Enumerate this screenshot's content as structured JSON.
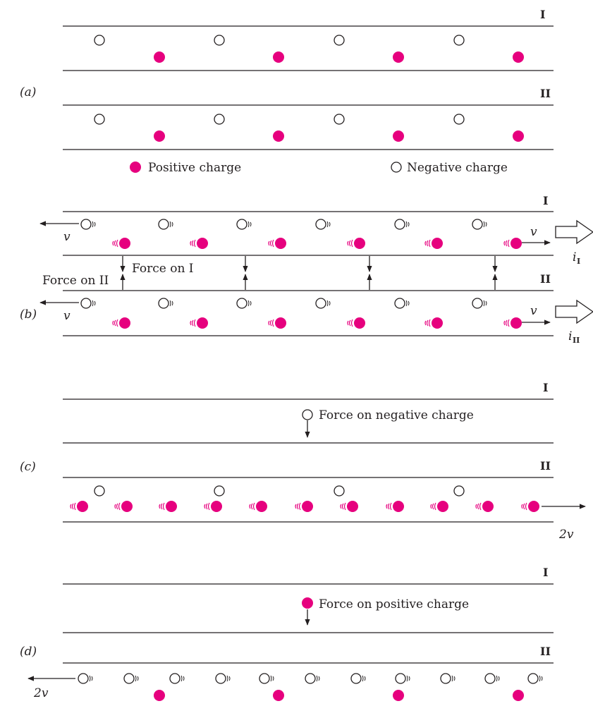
{
  "colors": {
    "positive": "#e6007e",
    "negative_fill": "#ffffff",
    "ink": "#231f20"
  },
  "panels": {
    "a": {
      "label": "(a)",
      "wire1": "I",
      "wire2": "II"
    },
    "b": {
      "label": "(b)",
      "wire1": "I",
      "wire2": "II",
      "velocity": "v",
      "force_on_1": "Force on I",
      "force_on_2": "Force on II",
      "current_1": "i",
      "current_1_sub": "I",
      "current_2": "i",
      "current_2_sub": "II"
    },
    "c": {
      "label": "(c)",
      "wire1": "I",
      "wire2": "II",
      "force_label": "Force on negative charge",
      "velocity": "2v"
    },
    "d": {
      "label": "(d)",
      "wire1": "I",
      "wire2": "II",
      "force_label": "Force on positive charge",
      "velocity": "2v"
    }
  },
  "legend": {
    "positive": "Positive charge",
    "negative": "Negative charge"
  }
}
